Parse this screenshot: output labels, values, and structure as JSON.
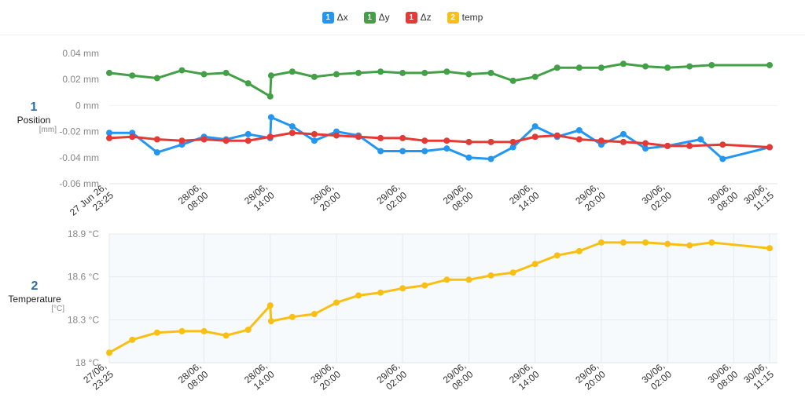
{
  "legend": [
    {
      "badge": "1",
      "label": "Δx",
      "color": "#2196f3"
    },
    {
      "badge": "1",
      "label": "Δy",
      "color": "#43a047"
    },
    {
      "badge": "1",
      "label": "Δz",
      "color": "#e53935"
    },
    {
      "badge": "2",
      "label": "temp",
      "color": "#f9c013"
    }
  ],
  "panels": {
    "position": {
      "number": "1",
      "name": "Position",
      "unit": "[mm]"
    },
    "temperature": {
      "number": "2",
      "name": "Temperature",
      "unit": "[°C]"
    }
  },
  "chart_data": [
    {
      "type": "line",
      "ylabel": "Position",
      "yunit": "mm",
      "ylim": [
        -0.06,
        0.04
      ],
      "yticks": [
        {
          "value": 0.04,
          "label": "0.04 mm"
        },
        {
          "value": 0.02,
          "label": "0.02 mm"
        },
        {
          "value": 0,
          "label": "0 mm"
        },
        {
          "value": -0.02,
          "label": "-0.02 mm"
        },
        {
          "value": -0.04,
          "label": "-0.04 mm"
        },
        {
          "value": -0.06,
          "label": "-0.06 mm"
        }
      ],
      "x_start": "27 Jun 26 23:25",
      "x_end": "30/06 11:15",
      "xticks": [
        {
          "t": "2026-06-27T23:25",
          "lines": [
            "27 Jun 26,",
            "23:25"
          ]
        },
        {
          "t": "2026-06-28T08:00",
          "lines": [
            "28/06,",
            "08:00"
          ]
        },
        {
          "t": "2026-06-28T14:00",
          "lines": [
            "28/06,",
            "14:00"
          ]
        },
        {
          "t": "2026-06-28T20:00",
          "lines": [
            "28/06,",
            "20:00"
          ]
        },
        {
          "t": "2026-06-29T02:00",
          "lines": [
            "29/06,",
            "02:00"
          ]
        },
        {
          "t": "2026-06-29T08:00",
          "lines": [
            "29/06,",
            "08:00"
          ]
        },
        {
          "t": "2026-06-29T14:00",
          "lines": [
            "29/06,",
            "14:00"
          ]
        },
        {
          "t": "2026-06-29T20:00",
          "lines": [
            "29/06,",
            "20:00"
          ]
        },
        {
          "t": "2026-06-30T02:00",
          "lines": [
            "30/06,",
            "02:00"
          ]
        },
        {
          "t": "2026-06-30T08:00",
          "lines": [
            "30/06,",
            "08:00"
          ]
        },
        {
          "t": "2026-06-30T11:15",
          "lines": [
            "30/06,",
            "11:15"
          ]
        }
      ],
      "grid": false,
      "series": [
        {
          "name": "Δx",
          "color": "#2196f3",
          "points": [
            [
              "2026-06-27T23:25",
              -0.021
            ],
            [
              "2026-06-28T01:30",
              -0.021
            ],
            [
              "2026-06-28T03:45",
              -0.036
            ],
            [
              "2026-06-28T06:00",
              -0.03
            ],
            [
              "2026-06-28T08:00",
              -0.024
            ],
            [
              "2026-06-28T10:00",
              -0.026
            ],
            [
              "2026-06-28T12:00",
              -0.022
            ],
            [
              "2026-06-28T14:00",
              -0.025
            ],
            [
              "2026-06-28T14:05",
              -0.009
            ],
            [
              "2026-06-28T16:00",
              -0.016
            ],
            [
              "2026-06-28T18:00",
              -0.027
            ],
            [
              "2026-06-28T20:00",
              -0.02
            ],
            [
              "2026-06-28T22:00",
              -0.023
            ],
            [
              "2026-06-29T00:00",
              -0.035
            ],
            [
              "2026-06-29T02:00",
              -0.035
            ],
            [
              "2026-06-29T04:00",
              -0.035
            ],
            [
              "2026-06-29T06:00",
              -0.033
            ],
            [
              "2026-06-29T08:00",
              -0.04
            ],
            [
              "2026-06-29T10:00",
              -0.041
            ],
            [
              "2026-06-29T12:00",
              -0.032
            ],
            [
              "2026-06-29T14:00",
              -0.016
            ],
            [
              "2026-06-29T16:00",
              -0.024
            ],
            [
              "2026-06-29T18:00",
              -0.019
            ],
            [
              "2026-06-29T20:00",
              -0.03
            ],
            [
              "2026-06-29T22:00",
              -0.022
            ],
            [
              "2026-06-30T00:00",
              -0.033
            ],
            [
              "2026-06-30T02:00",
              -0.031
            ],
            [
              "2026-06-30T05:00",
              -0.026
            ],
            [
              "2026-06-30T07:00",
              -0.041
            ],
            [
              "2026-06-30T11:15",
              -0.032
            ]
          ]
        },
        {
          "name": "Δy",
          "color": "#43a047",
          "points": [
            [
              "2026-06-27T23:25",
              0.025
            ],
            [
              "2026-06-28T01:30",
              0.023
            ],
            [
              "2026-06-28T03:45",
              0.021
            ],
            [
              "2026-06-28T06:00",
              0.027
            ],
            [
              "2026-06-28T08:00",
              0.024
            ],
            [
              "2026-06-28T10:00",
              0.025
            ],
            [
              "2026-06-28T12:00",
              0.017
            ],
            [
              "2026-06-28T14:00",
              0.007
            ],
            [
              "2026-06-28T14:05",
              0.023
            ],
            [
              "2026-06-28T16:00",
              0.026
            ],
            [
              "2026-06-28T18:00",
              0.022
            ],
            [
              "2026-06-28T20:00",
              0.024
            ],
            [
              "2026-06-28T22:00",
              0.025
            ],
            [
              "2026-06-29T00:00",
              0.026
            ],
            [
              "2026-06-29T02:00",
              0.025
            ],
            [
              "2026-06-29T04:00",
              0.025
            ],
            [
              "2026-06-29T06:00",
              0.026
            ],
            [
              "2026-06-29T08:00",
              0.024
            ],
            [
              "2026-06-29T10:00",
              0.025
            ],
            [
              "2026-06-29T12:00",
              0.019
            ],
            [
              "2026-06-29T14:00",
              0.022
            ],
            [
              "2026-06-29T16:00",
              0.029
            ],
            [
              "2026-06-29T18:00",
              0.029
            ],
            [
              "2026-06-29T20:00",
              0.029
            ],
            [
              "2026-06-29T22:00",
              0.032
            ],
            [
              "2026-06-30T00:00",
              0.03
            ],
            [
              "2026-06-30T02:00",
              0.029
            ],
            [
              "2026-06-30T04:00",
              0.03
            ],
            [
              "2026-06-30T06:00",
              0.031
            ],
            [
              "2026-06-30T11:15",
              0.031
            ]
          ]
        },
        {
          "name": "Δz",
          "color": "#e53935",
          "points": [
            [
              "2026-06-27T23:25",
              -0.025
            ],
            [
              "2026-06-28T01:30",
              -0.024
            ],
            [
              "2026-06-28T03:45",
              -0.026
            ],
            [
              "2026-06-28T06:00",
              -0.027
            ],
            [
              "2026-06-28T08:00",
              -0.026
            ],
            [
              "2026-06-28T10:00",
              -0.027
            ],
            [
              "2026-06-28T12:00",
              -0.027
            ],
            [
              "2026-06-28T14:00",
              -0.024
            ],
            [
              "2026-06-28T16:00",
              -0.021
            ],
            [
              "2026-06-28T18:00",
              -0.022
            ],
            [
              "2026-06-28T20:00",
              -0.023
            ],
            [
              "2026-06-28T22:00",
              -0.024
            ],
            [
              "2026-06-29T00:00",
              -0.025
            ],
            [
              "2026-06-29T02:00",
              -0.025
            ],
            [
              "2026-06-29T04:00",
              -0.027
            ],
            [
              "2026-06-29T06:00",
              -0.027
            ],
            [
              "2026-06-29T08:00",
              -0.028
            ],
            [
              "2026-06-29T10:00",
              -0.028
            ],
            [
              "2026-06-29T12:00",
              -0.028
            ],
            [
              "2026-06-29T14:00",
              -0.024
            ],
            [
              "2026-06-29T16:00",
              -0.023
            ],
            [
              "2026-06-29T18:00",
              -0.026
            ],
            [
              "2026-06-29T20:00",
              -0.027
            ],
            [
              "2026-06-29T22:00",
              -0.028
            ],
            [
              "2026-06-30T00:00",
              -0.029
            ],
            [
              "2026-06-30T02:00",
              -0.031
            ],
            [
              "2026-06-30T04:00",
              -0.031
            ],
            [
              "2026-06-30T07:00",
              -0.03
            ],
            [
              "2026-06-30T11:15",
              -0.032
            ]
          ]
        }
      ]
    },
    {
      "type": "line",
      "ylabel": "Temperature",
      "yunit": "°C",
      "ylim": [
        18.0,
        18.9
      ],
      "yticks": [
        {
          "value": 18.9,
          "label": "18.9 °C"
        },
        {
          "value": 18.6,
          "label": "18.6 °C"
        },
        {
          "value": 18.3,
          "label": "18.3 °C"
        },
        {
          "value": 18.0,
          "label": "18 °C"
        }
      ],
      "xticks": [
        {
          "t": "2026-06-27T23:25",
          "lines": [
            "27/06,",
            "23:25"
          ]
        },
        {
          "t": "2026-06-28T08:00",
          "lines": [
            "28/06,",
            "08:00"
          ]
        },
        {
          "t": "2026-06-28T14:00",
          "lines": [
            "28/06,",
            "14:00"
          ]
        },
        {
          "t": "2026-06-28T20:00",
          "lines": [
            "28/06,",
            "20:00"
          ]
        },
        {
          "t": "2026-06-29T02:00",
          "lines": [
            "29/06,",
            "02:00"
          ]
        },
        {
          "t": "2026-06-29T08:00",
          "lines": [
            "29/06,",
            "08:00"
          ]
        },
        {
          "t": "2026-06-29T14:00",
          "lines": [
            "29/06,",
            "14:00"
          ]
        },
        {
          "t": "2026-06-29T20:00",
          "lines": [
            "29/06,",
            "20:00"
          ]
        },
        {
          "t": "2026-06-30T02:00",
          "lines": [
            "30/06,",
            "02:00"
          ]
        },
        {
          "t": "2026-06-30T08:00",
          "lines": [
            "30/06,",
            "08:00"
          ]
        },
        {
          "t": "2026-06-30T11:15",
          "lines": [
            "30/06,",
            "11:15"
          ]
        }
      ],
      "grid": true,
      "series": [
        {
          "name": "temp",
          "color": "#f9c013",
          "points": [
            [
              "2026-06-27T23:25",
              18.07
            ],
            [
              "2026-06-28T01:30",
              18.16
            ],
            [
              "2026-06-28T03:45",
              18.21
            ],
            [
              "2026-06-28T06:00",
              18.22
            ],
            [
              "2026-06-28T08:00",
              18.22
            ],
            [
              "2026-06-28T10:00",
              18.19
            ],
            [
              "2026-06-28T12:00",
              18.23
            ],
            [
              "2026-06-28T14:00",
              18.4
            ],
            [
              "2026-06-28T14:05",
              18.29
            ],
            [
              "2026-06-28T16:00",
              18.32
            ],
            [
              "2026-06-28T18:00",
              18.34
            ],
            [
              "2026-06-28T20:00",
              18.42
            ],
            [
              "2026-06-28T22:00",
              18.47
            ],
            [
              "2026-06-29T00:00",
              18.49
            ],
            [
              "2026-06-29T02:00",
              18.52
            ],
            [
              "2026-06-29T04:00",
              18.54
            ],
            [
              "2026-06-29T06:00",
              18.58
            ],
            [
              "2026-06-29T08:00",
              18.58
            ],
            [
              "2026-06-29T10:00",
              18.61
            ],
            [
              "2026-06-29T12:00",
              18.63
            ],
            [
              "2026-06-29T14:00",
              18.69
            ],
            [
              "2026-06-29T16:00",
              18.75
            ],
            [
              "2026-06-29T18:00",
              18.78
            ],
            [
              "2026-06-29T20:00",
              18.84
            ],
            [
              "2026-06-29T22:00",
              18.84
            ],
            [
              "2026-06-30T00:00",
              18.84
            ],
            [
              "2026-06-30T02:00",
              18.83
            ],
            [
              "2026-06-30T04:00",
              18.82
            ],
            [
              "2026-06-30T06:00",
              18.84
            ],
            [
              "2026-06-30T11:15",
              18.8
            ]
          ]
        }
      ]
    }
  ]
}
